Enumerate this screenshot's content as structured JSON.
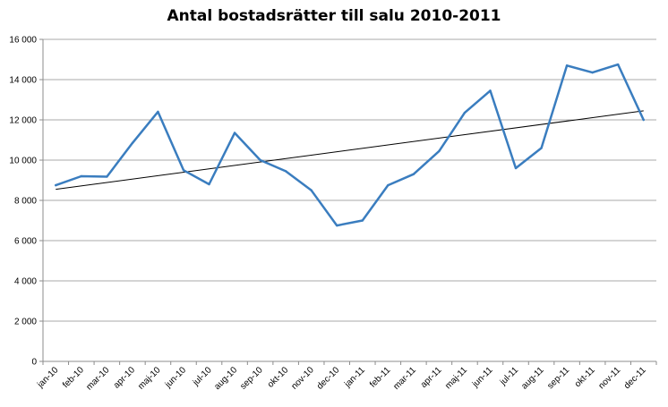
{
  "chart_data": {
    "type": "line",
    "title": "Antal bostadsrätter till salu 2010-2011",
    "xlabel": "",
    "ylabel": "",
    "ylim": [
      0,
      16000
    ],
    "y_ticks": [
      0,
      2000,
      4000,
      6000,
      8000,
      10000,
      12000,
      14000,
      16000
    ],
    "y_tick_labels": [
      "0",
      "2 000",
      "4 000",
      "6 000",
      "8 000",
      "10 000",
      "12 000",
      "14 000",
      "16 000"
    ],
    "categories": [
      "jan-10",
      "feb-10",
      "mar-10",
      "apr-10",
      "maj-10",
      "jun-10",
      "jul-10",
      "aug-10",
      "sep-10",
      "okt-10",
      "nov-10",
      "dec-10",
      "jan-11",
      "feb-11",
      "mar-11",
      "apr-11",
      "maj-11",
      "jun-11",
      "jul-11",
      "aug-11",
      "sep-11",
      "okt-11",
      "nov-11",
      "dec-11"
    ],
    "series": [
      {
        "values": [
          8750,
          9200,
          9180,
          10850,
          12400,
          9500,
          8800,
          11350,
          10000,
          9450,
          8500,
          6750,
          7000,
          8750,
          9300,
          10450,
          12350,
          13450,
          9600,
          10600,
          14700,
          14350,
          14750,
          12000
        ]
      }
    ],
    "trendline": {
      "type": "linear",
      "start": 8550,
      "end": 12450
    },
    "grid": true,
    "legend": "none",
    "colors": {
      "series": "#3a7dbf",
      "trendline": "#000000",
      "grid": "#8c8c8c",
      "axis": "#8c8c8c"
    }
  }
}
